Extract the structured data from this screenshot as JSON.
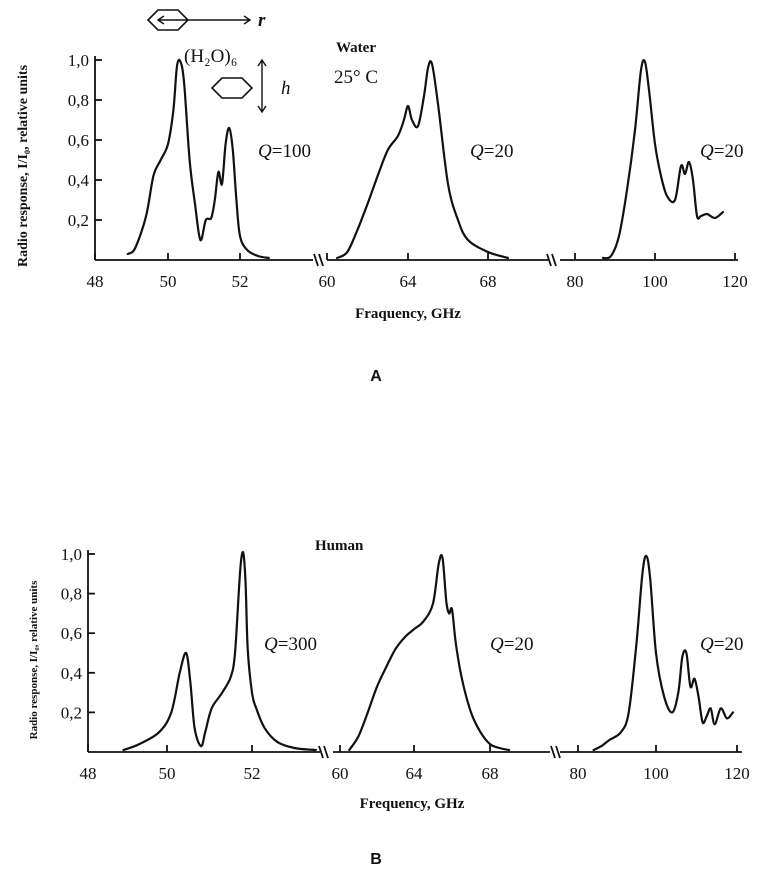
{
  "chart_data": [
    {
      "type": "line",
      "panel_label": "A",
      "subtitle": "Water",
      "temperature": "25° C",
      "molecule_label": "(H₂O)₆",
      "r_label": "r",
      "h_label": "h",
      "xlabel": "Fraquency, GHz",
      "ylabel": "Radio response, I/I₀, relative units",
      "ylim": [
        0,
        1.0
      ],
      "yticks": [
        "0,2",
        "0,4",
        "0,6",
        "0,8",
        "1,0"
      ],
      "x_ticks": [
        "48",
        "50",
        "52",
        "60",
        "64",
        "68",
        "80",
        "100",
        "120"
      ],
      "segments": [
        {
          "q_label": "Q=100",
          "xlim": [
            48,
            54
          ],
          "x": [
            48.9,
            49.1,
            49.4,
            49.6,
            49.8,
            50.0,
            50.15,
            50.25,
            50.35,
            50.45,
            50.6,
            50.75,
            50.9,
            51.05,
            51.2,
            51.3,
            51.4,
            51.5,
            51.6,
            51.7,
            51.8,
            51.9,
            52.0,
            52.2,
            52.5,
            52.8
          ],
          "y": [
            0.03,
            0.06,
            0.22,
            0.42,
            0.5,
            0.58,
            0.75,
            0.97,
            0.99,
            0.88,
            0.5,
            0.28,
            0.1,
            0.2,
            0.21,
            0.3,
            0.44,
            0.38,
            0.58,
            0.66,
            0.55,
            0.3,
            0.12,
            0.05,
            0.02,
            0.01
          ]
        },
        {
          "q_label": "Q=20",
          "xlim": [
            59,
            70
          ],
          "x": [
            60.5,
            61,
            61.5,
            62,
            62.5,
            63,
            63.5,
            63.8,
            64,
            64.2,
            64.5,
            64.8,
            65,
            65.2,
            65.5,
            66,
            66.5,
            67,
            68,
            69
          ],
          "y": [
            0.01,
            0.04,
            0.15,
            0.28,
            0.42,
            0.55,
            0.62,
            0.7,
            0.77,
            0.7,
            0.67,
            0.82,
            0.96,
            0.98,
            0.78,
            0.38,
            0.2,
            0.1,
            0.04,
            0.01
          ]
        },
        {
          "q_label": "Q=20",
          "xlim": [
            76,
            120
          ],
          "x": [
            87,
            89,
            91,
            93,
            95,
            96.5,
            97.5,
            98.5,
            100,
            101.5,
            103,
            105,
            106.5,
            107.5,
            108.5,
            109.5,
            110.5,
            111.5,
            113,
            115,
            117
          ],
          "y": [
            0.01,
            0.02,
            0.12,
            0.35,
            0.65,
            0.95,
            0.99,
            0.85,
            0.58,
            0.42,
            0.32,
            0.3,
            0.47,
            0.43,
            0.49,
            0.4,
            0.22,
            0.22,
            0.23,
            0.21,
            0.24
          ]
        }
      ]
    },
    {
      "type": "line",
      "panel_label": "B",
      "subtitle": "Human",
      "xlabel": "Frequency, GHz",
      "ylabel": "Radio response, I/I₀, relative units",
      "ylim": [
        0,
        1.0
      ],
      "yticks": [
        "0,2",
        "0,4",
        "0,6",
        "0,8",
        "1,0"
      ],
      "x_ticks": [
        "48",
        "50",
        "52",
        "60",
        "64",
        "68",
        "80",
        "100",
        "120"
      ],
      "segments": [
        {
          "q_label": "Q=300",
          "xlim": [
            48,
            54
          ],
          "x": [
            48.9,
            49.3,
            49.8,
            50.1,
            50.3,
            50.45,
            50.55,
            50.65,
            50.8,
            50.9,
            51.05,
            51.3,
            51.5,
            51.6,
            51.7,
            51.75,
            51.8,
            51.85,
            51.9,
            52.0,
            52.1,
            52.3,
            52.6,
            53.0,
            53.5
          ],
          "y": [
            0.01,
            0.04,
            0.1,
            0.2,
            0.4,
            0.5,
            0.35,
            0.12,
            0.03,
            0.1,
            0.22,
            0.3,
            0.38,
            0.5,
            0.85,
            0.98,
            1.0,
            0.85,
            0.52,
            0.3,
            0.22,
            0.12,
            0.05,
            0.02,
            0.01
          ]
        },
        {
          "q_label": "Q=20",
          "xlim": [
            59,
            70
          ],
          "x": [
            60.5,
            61,
            61.5,
            62,
            62.5,
            63,
            63.5,
            64,
            64.5,
            65,
            65.3,
            65.5,
            65.7,
            65.85,
            66,
            66.2,
            66.5,
            67,
            67.5,
            68,
            68.5,
            69
          ],
          "y": [
            0.01,
            0.08,
            0.2,
            0.33,
            0.43,
            0.52,
            0.58,
            0.62,
            0.66,
            0.75,
            0.95,
            0.98,
            0.76,
            0.7,
            0.72,
            0.55,
            0.38,
            0.2,
            0.1,
            0.04,
            0.02,
            0.01
          ]
        },
        {
          "q_label": "Q=20",
          "xlim": [
            76,
            120
          ],
          "x": [
            84,
            86,
            88,
            91,
            93,
            95,
            96.5,
            97.5,
            98.5,
            100,
            102,
            104,
            105.5,
            106.5,
            107.5,
            108.5,
            109.5,
            110.5,
            111.5,
            112.5,
            113.5,
            114.5,
            116,
            117.5,
            119
          ],
          "y": [
            0.01,
            0.03,
            0.06,
            0.1,
            0.2,
            0.55,
            0.9,
            0.99,
            0.88,
            0.5,
            0.28,
            0.2,
            0.3,
            0.48,
            0.5,
            0.33,
            0.37,
            0.28,
            0.15,
            0.18,
            0.22,
            0.14,
            0.22,
            0.17,
            0.2
          ]
        }
      ]
    }
  ]
}
